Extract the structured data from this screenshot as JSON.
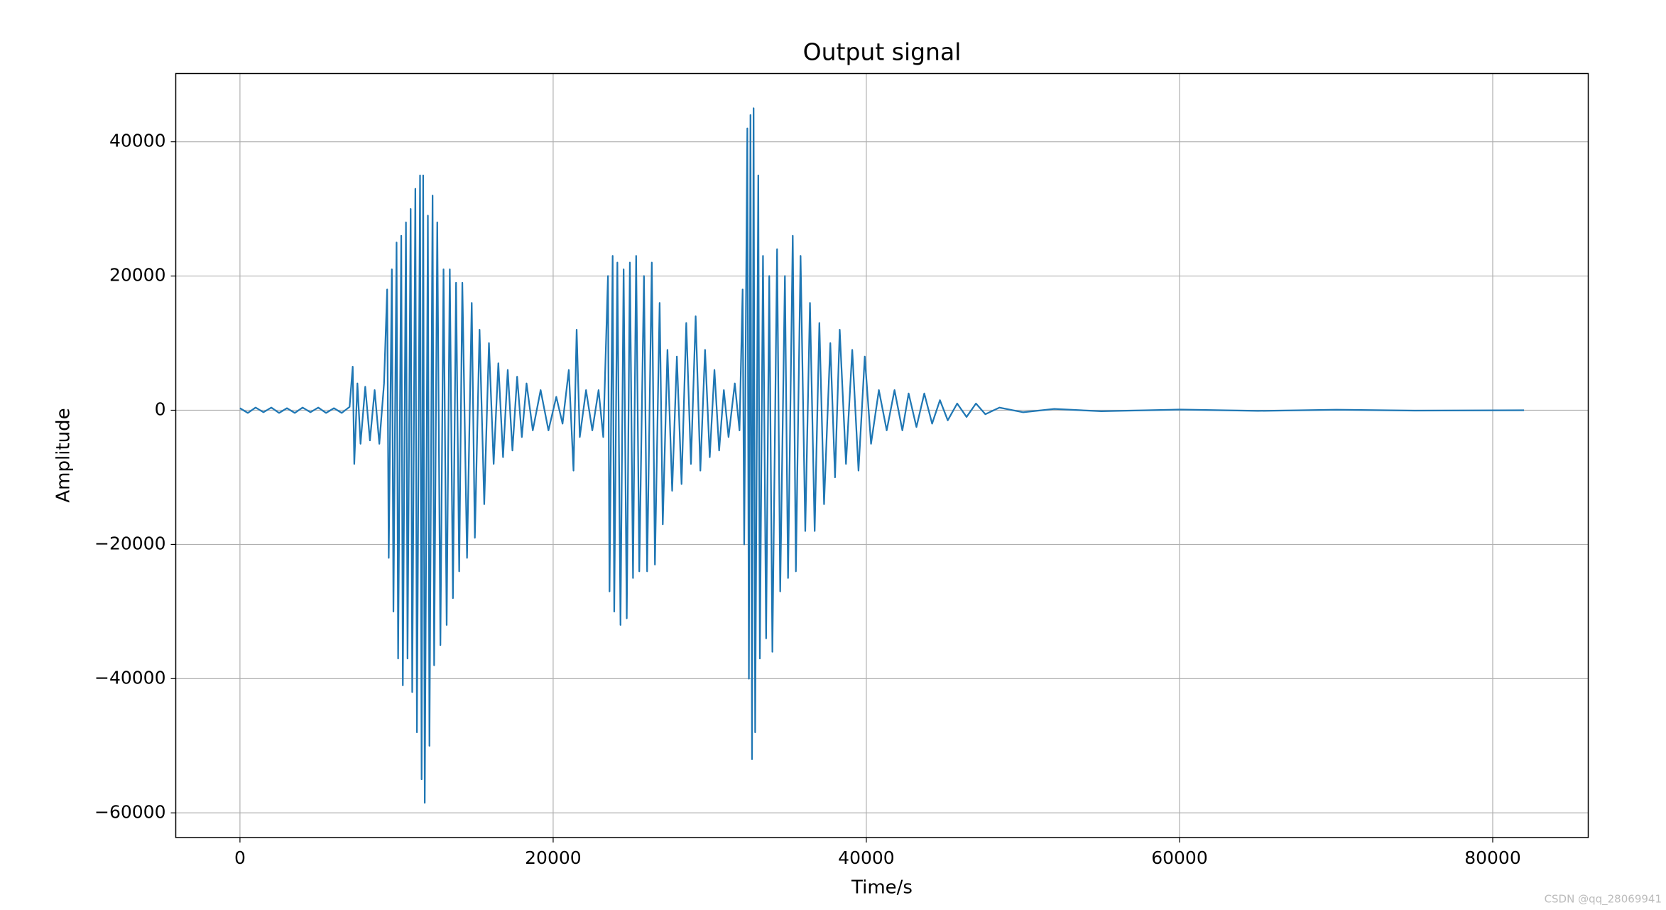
{
  "chart_data": {
    "type": "line",
    "title": "Output signal",
    "xlabel": "Time/s",
    "ylabel": "Amplitude",
    "watermark": "CSDN @qq_28069941",
    "xlim": [
      -4100,
      86100
    ],
    "ylim": [
      -63675,
      50175
    ],
    "xticks": [
      0,
      20000,
      40000,
      60000,
      80000
    ],
    "yticks": [
      {
        "value": -60000,
        "label": "−60000"
      },
      {
        "value": -40000,
        "label": "−40000"
      },
      {
        "value": -20000,
        "label": "−20000"
      },
      0,
      20000,
      40000
    ],
    "grid": true,
    "x": [
      0,
      500,
      1000,
      1500,
      2000,
      2500,
      3000,
      3500,
      4000,
      4500,
      5000,
      5500,
      6000,
      6500,
      7000,
      7200,
      7300,
      7500,
      7700,
      8000,
      8300,
      8600,
      8900,
      9200,
      9400,
      9500,
      9700,
      9800,
      10000,
      10100,
      10300,
      10400,
      10600,
      10700,
      10900,
      11000,
      11200,
      11300,
      11500,
      11600,
      11700,
      11800,
      12000,
      12100,
      12300,
      12400,
      12600,
      12800,
      13000,
      13200,
      13400,
      13600,
      13800,
      14000,
      14200,
      14500,
      14800,
      15000,
      15300,
      15600,
      15900,
      16200,
      16500,
      16800,
      17100,
      17400,
      17700,
      18000,
      18300,
      18700,
      19200,
      19700,
      20200,
      20600,
      21000,
      21300,
      21500,
      21700,
      22100,
      22500,
      22900,
      23200,
      23500,
      23600,
      23800,
      23900,
      24100,
      24300,
      24500,
      24700,
      24900,
      25100,
      25300,
      25500,
      25800,
      26000,
      26300,
      26500,
      26800,
      27000,
      27300,
      27600,
      27900,
      28200,
      28500,
      28800,
      29100,
      29400,
      29700,
      30000,
      30300,
      30600,
      30900,
      31200,
      31600,
      31900,
      32100,
      32200,
      32400,
      32500,
      32600,
      32700,
      32800,
      32900,
      33100,
      33200,
      33400,
      33600,
      33800,
      34000,
      34300,
      34500,
      34800,
      35000,
      35300,
      35500,
      35800,
      36100,
      36400,
      36700,
      37000,
      37300,
      37700,
      38000,
      38300,
      38700,
      39100,
      39500,
      39900,
      40300,
      40800,
      41300,
      41800,
      42300,
      42700,
      43200,
      43700,
      44200,
      44700,
      45200,
      45800,
      46400,
      47000,
      47600,
      48500,
      50000,
      52000,
      55000,
      60000,
      65000,
      70000,
      75000,
      82000
    ],
    "series": [
      {
        "name": "Output signal",
        "color": "#1f77b4",
        "values": [
          300,
          -400,
          400,
          -300,
          400,
          -400,
          300,
          -400,
          400,
          -300,
          400,
          -400,
          300,
          -400,
          500,
          6500,
          -8000,
          4000,
          -5000,
          3500,
          -4500,
          3000,
          -5000,
          4000,
          18000,
          -22000,
          21000,
          -30000,
          25000,
          -37000,
          26000,
          -41000,
          28000,
          -37000,
          30000,
          -42000,
          33000,
          -48000,
          35000,
          -55000,
          35000,
          -58500,
          29000,
          -50000,
          32000,
          -38000,
          28000,
          -35000,
          21000,
          -32000,
          21000,
          -28000,
          19000,
          -24000,
          19000,
          -22000,
          16000,
          -19000,
          12000,
          -14000,
          10000,
          -8000,
          7000,
          -7000,
          6000,
          -6000,
          5000,
          -4000,
          4000,
          -3000,
          3000,
          -3000,
          2000,
          -2000,
          6000,
          -9000,
          12000,
          -4000,
          3000,
          -3000,
          3000,
          -4000,
          20000,
          -27000,
          23000,
          -30000,
          22000,
          -32000,
          21000,
          -31000,
          22000,
          -25000,
          23000,
          -24000,
          20000,
          -24000,
          22000,
          -23000,
          16000,
          -17000,
          9000,
          -12000,
          8000,
          -11000,
          13000,
          -8000,
          14000,
          -9000,
          9000,
          -7000,
          6000,
          -6000,
          3000,
          -4000,
          4000,
          -3000,
          18000,
          -20000,
          42000,
          -40000,
          44000,
          -52000,
          45000,
          -48000,
          35000,
          -37000,
          23000,
          -34000,
          20000,
          -36000,
          24000,
          -27000,
          20000,
          -25000,
          26000,
          -24000,
          23000,
          -18000,
          16000,
          -18000,
          13000,
          -14000,
          10000,
          -10000,
          12000,
          -8000,
          9000,
          -9000,
          8000,
          -5000,
          3000,
          -3000,
          3000,
          -3000,
          2500,
          -2500,
          2500,
          -2000,
          1500,
          -1500,
          1000,
          -1000,
          1000,
          -600,
          400,
          -300,
          200,
          -150,
          100,
          -100,
          80,
          -50,
          0
        ]
      }
    ]
  }
}
